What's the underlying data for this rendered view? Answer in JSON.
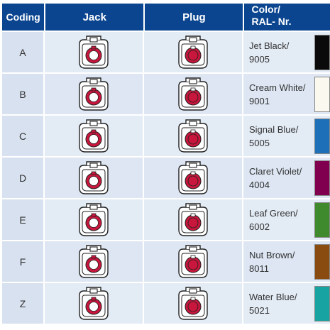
{
  "headers": {
    "coding": "Coding",
    "jack": "Jack",
    "plug": "Plug",
    "color_line1": "Color/",
    "color_line2": "RAL- Nr."
  },
  "rows": [
    {
      "code": "A",
      "color_name": "Jet Black/",
      "ral": "9005",
      "swatch": "#0a0a0a"
    },
    {
      "code": "B",
      "color_name": "Cream White/",
      "ral": "9001",
      "swatch": "#fbf8f0"
    },
    {
      "code": "C",
      "color_name": "Signal Blue/",
      "ral": "5005",
      "swatch": "#1d6fb8"
    },
    {
      "code": "D",
      "color_name": "Claret Violet/",
      "ral": "4004",
      "swatch": "#80004f"
    },
    {
      "code": "E",
      "color_name": "Leaf Green/",
      "ral": "6002",
      "swatch": "#3f8a2c"
    },
    {
      "code": "F",
      "color_name": "Nut Brown/",
      "ral": "8011",
      "swatch": "#8a4b10"
    },
    {
      "code": "Z",
      "color_name": "Water Blue/",
      "ral": "5021",
      "swatch": "#16a3a1"
    }
  ],
  "colors": {
    "header_bg": "#0b4590",
    "connector_red": "#c8163c"
  }
}
